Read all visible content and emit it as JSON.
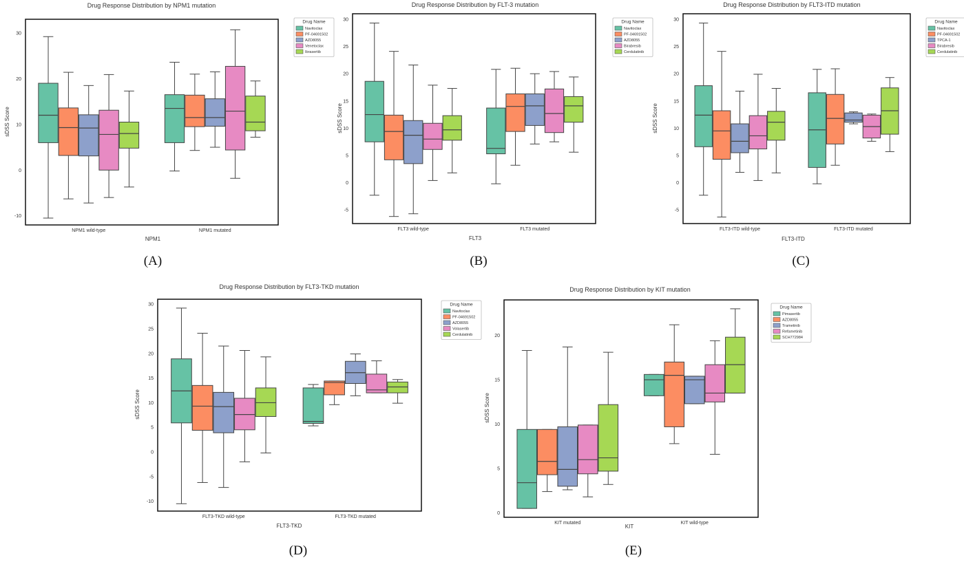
{
  "chart_data": [
    {
      "type": "box",
      "panel_label": "(A)",
      "title": "Drug Response Distribution by NPM1 mutation",
      "xlabel": "NPM1",
      "ylabel": "sDSS Score",
      "categories": [
        "NPM1 wild-type",
        "NPM1 mutated"
      ],
      "yticks": [
        -10,
        0,
        10,
        20,
        30
      ],
      "ylim": [
        -12,
        33
      ],
      "legend": {
        "title": "Drug Name",
        "position": "outside-top-right"
      },
      "series": [
        {
          "name": "Navitoclax",
          "color": "#66c2a5",
          "boxes": [
            {
              "min": -10.5,
              "q1": 6,
              "median": 12,
              "q3": 19,
              "max": 29.2
            },
            {
              "min": -0.2,
              "q1": 6,
              "median": 13.5,
              "q3": 16.5,
              "max": 23.6
            }
          ]
        },
        {
          "name": "PF-04691502",
          "color": "#fc8d62",
          "boxes": [
            {
              "min": -6.3,
              "q1": 3.2,
              "median": 9.3,
              "q3": 13.6,
              "max": 21.4
            },
            {
              "min": 4.3,
              "q1": 9.5,
              "median": 11.5,
              "q3": 16.4,
              "max": 21
            }
          ]
        },
        {
          "name": "AZD8055",
          "color": "#8da0cb",
          "boxes": [
            {
              "min": -7.2,
              "q1": 3.1,
              "median": 9.2,
              "q3": 12.1,
              "max": 18.5
            },
            {
              "min": 5,
              "q1": 9.6,
              "median": 11.5,
              "q3": 15.6,
              "max": 21.5
            }
          ]
        },
        {
          "name": "Venetoclax",
          "color": "#e78ac3",
          "boxes": [
            {
              "min": -6,
              "q1": 0,
              "median": 7.8,
              "q3": 13.1,
              "max": 20.9
            },
            {
              "min": -1.8,
              "q1": 4.4,
              "median": 12.9,
              "q3": 22.7,
              "max": 30.7
            }
          ]
        },
        {
          "name": "Ibrasertib",
          "color": "#a6d854",
          "boxes": [
            {
              "min": -3.7,
              "q1": 4.8,
              "median": 8,
              "q3": 10.5,
              "max": 17.3
            },
            {
              "min": 7.2,
              "q1": 8.6,
              "median": 10.5,
              "q3": 16.2,
              "max": 19.5
            }
          ]
        }
      ]
    },
    {
      "type": "box",
      "panel_label": "(B)",
      "title": "Drug Response Distribution by FLT-3 mutation",
      "xlabel": "FLT3",
      "ylabel": "sDSS Score",
      "categories": [
        "FLT3 wild-type",
        "FLT3 mutated"
      ],
      "yticks": [
        -5,
        0,
        5,
        10,
        15,
        20,
        25,
        30
      ],
      "ylim": [
        -7.5,
        31
      ],
      "legend": {
        "title": "Drug Name",
        "position": "outside-top-right"
      },
      "series": [
        {
          "name": "Navitoclax",
          "color": "#66c2a5",
          "boxes": [
            {
              "min": -2.3,
              "q1": 7.5,
              "median": 12.5,
              "q3": 18.6,
              "max": 29.3
            },
            {
              "min": -0.2,
              "q1": 5.3,
              "median": 6.3,
              "q3": 13.7,
              "max": 20.8
            }
          ]
        },
        {
          "name": "PF-04691502",
          "color": "#fc8d62",
          "boxes": [
            {
              "min": -6.2,
              "q1": 4.2,
              "median": 9.4,
              "q3": 12.4,
              "max": 24.1
            },
            {
              "min": 3.2,
              "q1": 9.4,
              "median": 14,
              "q3": 16.3,
              "max": 21
            }
          ]
        },
        {
          "name": "AZD8055",
          "color": "#8da0cb",
          "boxes": [
            {
              "min": -5.7,
              "q1": 3.5,
              "median": 8.7,
              "q3": 11.4,
              "max": 21.6
            },
            {
              "min": 7.1,
              "q1": 10.5,
              "median": 14.1,
              "q3": 16.3,
              "max": 20
            }
          ]
        },
        {
          "name": "Birabresib",
          "color": "#e78ac3",
          "boxes": [
            {
              "min": 0.4,
              "q1": 6.1,
              "median": 8,
              "q3": 10.9,
              "max": 17.9
            },
            {
              "min": 7.5,
              "q1": 9.2,
              "median": 12.7,
              "q3": 17.2,
              "max": 20.4
            }
          ]
        },
        {
          "name": "Cerdulatinib",
          "color": "#a6d854",
          "boxes": [
            {
              "min": 1.8,
              "q1": 7.8,
              "median": 9.7,
              "q3": 12.3,
              "max": 17.3
            },
            {
              "min": 5.6,
              "q1": 11.1,
              "median": 14.1,
              "q3": 15.8,
              "max": 19.4
            }
          ]
        }
      ]
    },
    {
      "type": "box",
      "panel_label": "(C)",
      "title": "Drug Response Distribution by FLT3-ITD mutation",
      "xlabel": "FLT3-ITD",
      "ylabel": "sDSS Score",
      "categories": [
        "FLT3-ITD wild-type",
        "FLT3-ITD mutated"
      ],
      "yticks": [
        -5,
        0,
        5,
        10,
        15,
        20,
        25,
        30
      ],
      "ylim": [
        -7.5,
        31
      ],
      "legend": {
        "title": "Drug Name",
        "position": "outside-top-right"
      },
      "series": [
        {
          "name": "Navitoclax",
          "color": "#66c2a5",
          "boxes": [
            {
              "min": -2.3,
              "q1": 6.6,
              "median": 12.4,
              "q3": 17.8,
              "max": 29.3
            },
            {
              "min": -0.2,
              "q1": 2.8,
              "median": 9.7,
              "q3": 16.5,
              "max": 20.8
            }
          ]
        },
        {
          "name": "PF-04691502",
          "color": "#fc8d62",
          "boxes": [
            {
              "min": -6.3,
              "q1": 4.3,
              "median": 9.5,
              "q3": 13.2,
              "max": 24.1
            },
            {
              "min": 3.2,
              "q1": 7.1,
              "median": 11.8,
              "q3": 16.2,
              "max": 20.9
            }
          ]
        },
        {
          "name": "TPCA-1",
          "color": "#8da0cb",
          "boxes": [
            {
              "min": 1.9,
              "q1": 5.5,
              "median": 7.6,
              "q3": 10.8,
              "max": 16.8
            },
            {
              "min": 10.8,
              "q1": 11.1,
              "median": 11.5,
              "q3": 12.8,
              "max": 13
            }
          ]
        },
        {
          "name": "Birabresib",
          "color": "#e78ac3",
          "boxes": [
            {
              "min": 0.4,
              "q1": 6.2,
              "median": 8.6,
              "q3": 12.3,
              "max": 19.9
            },
            {
              "min": 7.6,
              "q1": 8.2,
              "median": 10.3,
              "q3": 12.4,
              "max": 12.6
            }
          ]
        },
        {
          "name": "Cerdulatinib",
          "color": "#a6d854",
          "boxes": [
            {
              "min": 1.8,
              "q1": 7.8,
              "median": 11.1,
              "q3": 13.1,
              "max": 17.3
            },
            {
              "min": 5.7,
              "q1": 8.9,
              "median": 13.2,
              "q3": 17.4,
              "max": 19.3
            }
          ]
        }
      ]
    },
    {
      "type": "box",
      "panel_label": "(D)",
      "title": "Drug Response Distribution by FLT3-TKD mutation",
      "xlabel": "FLT3-TKD",
      "ylabel": "sDSS Score",
      "categories": [
        "FLT3-TKD wild-type",
        "FLT3-TKD mutated"
      ],
      "yticks": [
        -10,
        -5,
        0,
        5,
        10,
        15,
        20,
        25,
        30
      ],
      "ylim": [
        -12,
        31
      ],
      "legend": {
        "title": "Drug Name",
        "position": "outside-top-right"
      },
      "series": [
        {
          "name": "Navitoclax",
          "color": "#66c2a5",
          "boxes": [
            {
              "min": -10.5,
              "q1": 5.9,
              "median": 12.4,
              "q3": 18.9,
              "max": 29.2
            },
            {
              "min": 5.3,
              "q1": 5.8,
              "median": 6.2,
              "q3": 13,
              "max": 13.7
            }
          ]
        },
        {
          "name": "PF-04691502",
          "color": "#fc8d62",
          "boxes": [
            {
              "min": -6.2,
              "q1": 4.4,
              "median": 9.3,
              "q3": 13.5,
              "max": 24.1
            },
            {
              "min": 9.6,
              "q1": 11.6,
              "median": 14.1,
              "q3": 14.4,
              "max": 14.4
            }
          ]
        },
        {
          "name": "AZD8055",
          "color": "#8da0cb",
          "boxes": [
            {
              "min": -7.2,
              "q1": 3.9,
              "median": 9.2,
              "q3": 12.1,
              "max": 21.5
            },
            {
              "min": 11.4,
              "q1": 13.9,
              "median": 16.1,
              "q3": 18.4,
              "max": 19.9
            }
          ]
        },
        {
          "name": "Volasertib",
          "color": "#e78ac3",
          "boxes": [
            {
              "min": -2,
              "q1": 4.5,
              "median": 7.6,
              "q3": 10.9,
              "max": 20.6
            },
            {
              "min": 12,
              "q1": 12,
              "median": 12.6,
              "q3": 15.8,
              "max": 18.5
            }
          ]
        },
        {
          "name": "Cerdulatinib",
          "color": "#a6d854",
          "boxes": [
            {
              "min": -0.2,
              "q1": 7.2,
              "median": 10,
              "q3": 13,
              "max": 19.3
            },
            {
              "min": 9.9,
              "q1": 12,
              "median": 13.2,
              "q3": 14.2,
              "max": 14.7
            }
          ]
        }
      ]
    },
    {
      "type": "box",
      "panel_label": "(E)",
      "title": "Drug Response Distribution by KIT mutation",
      "xlabel": "KIT",
      "ylabel": "sDSS Score",
      "categories": [
        "KIT mutated",
        "KIT wild-type"
      ],
      "yticks": [
        0,
        5,
        10,
        15,
        20
      ],
      "ylim": [
        -0.5,
        24
      ],
      "legend": {
        "title": "Drug Name",
        "position": "outside-top-right"
      },
      "series": [
        {
          "name": "Pimasertib",
          "color": "#66c2a5",
          "boxes": [
            {
              "min": 0.5,
              "q1": 0.5,
              "median": 3.4,
              "q3": 9.4,
              "max": 18.3
            },
            {
              "min": 13.2,
              "q1": 13.2,
              "median": 15,
              "q3": 15.6,
              "max": 15.6
            }
          ]
        },
        {
          "name": "AZD8055",
          "color": "#fc8d62",
          "boxes": [
            {
              "min": 2.4,
              "q1": 4.3,
              "median": 5.8,
              "q3": 9.4,
              "max": 9.4
            },
            {
              "min": 7.8,
              "q1": 9.7,
              "median": 15.5,
              "q3": 17,
              "max": 21.2
            }
          ]
        },
        {
          "name": "Trametinib",
          "color": "#8da0cb",
          "boxes": [
            {
              "min": 2.6,
              "q1": 3,
              "median": 4.9,
              "q3": 9.7,
              "max": 18.7
            },
            {
              "min": 12.3,
              "q1": 12.3,
              "median": 15,
              "q3": 15.4,
              "max": 15.4
            }
          ]
        },
        {
          "name": "Refametinib",
          "color": "#e78ac3",
          "boxes": [
            {
              "min": 1.8,
              "q1": 4.4,
              "median": 6,
              "q3": 9.9,
              "max": 9.9
            },
            {
              "min": 6.6,
              "q1": 12.5,
              "median": 13.5,
              "q3": 16.7,
              "max": 19.4
            }
          ]
        },
        {
          "name": "SCH772984",
          "color": "#a6d854",
          "boxes": [
            {
              "min": 3.2,
              "q1": 4.7,
              "median": 6.2,
              "q3": 12.2,
              "max": 18.1
            },
            {
              "min": 13.5,
              "q1": 13.5,
              "median": 16.7,
              "q3": 19.8,
              "max": 23
            }
          ]
        }
      ]
    }
  ]
}
